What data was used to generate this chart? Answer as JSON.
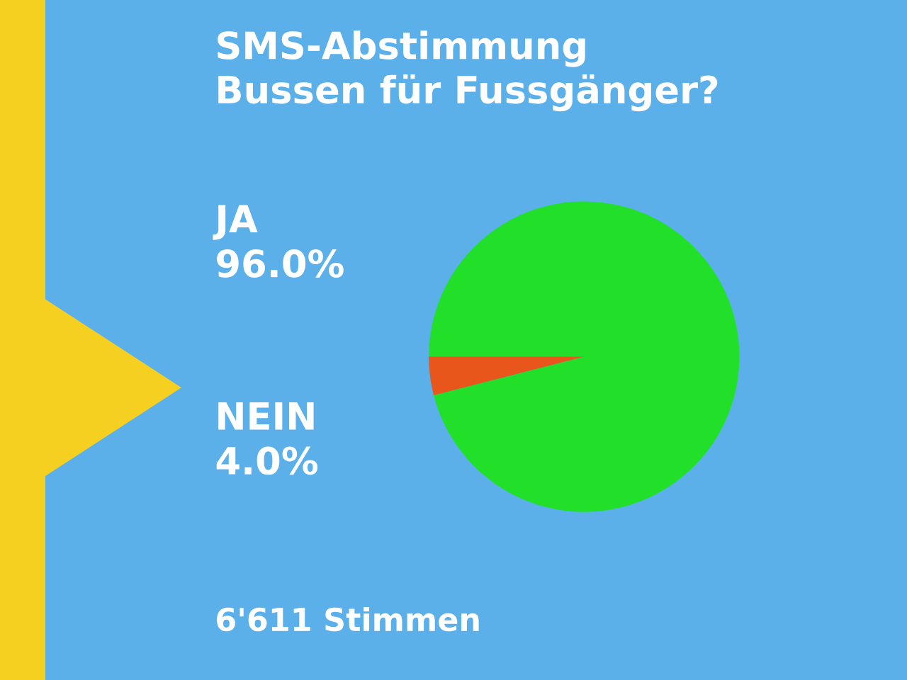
{
  "chart_data": {
    "type": "pie",
    "title": "SMS-Abstimmung\nBussen für Fussgänger?",
    "categories": [
      "JA",
      "NEIN"
    ],
    "values": [
      96.0,
      4.0
    ],
    "value_labels": [
      "96.0%",
      "4.0%"
    ],
    "colors": [
      "#22e02a",
      "#e8561c"
    ],
    "annotations": [
      "6'611 Stimmen"
    ]
  }
}
